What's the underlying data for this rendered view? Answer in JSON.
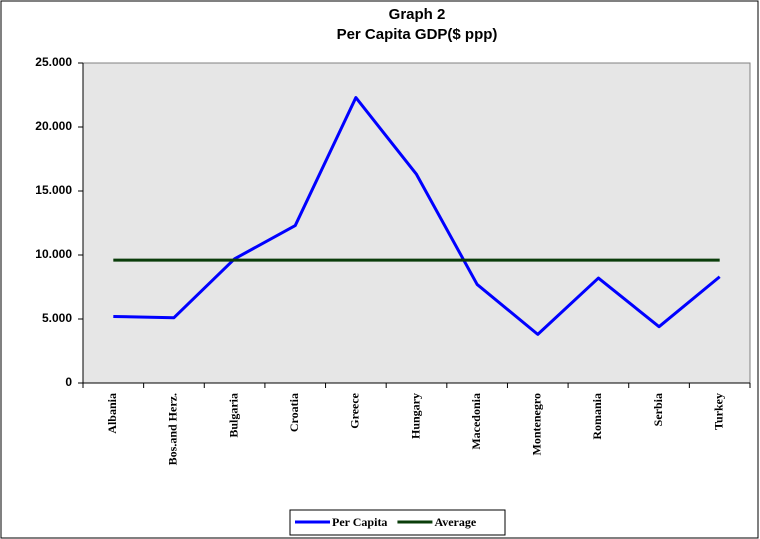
{
  "chart_data": {
    "type": "line",
    "title": "Graph 2",
    "subtitle": "Per Capita GDP($ ppp)",
    "categories": [
      "Albania",
      "Bos.and Herz.",
      "Bulgaria",
      "Croatia",
      "Greece",
      "Hungary",
      "Macedonia",
      "Montenegro",
      "Romania",
      "Serbia",
      "Turkey"
    ],
    "series": [
      {
        "name": "Per Capita",
        "color": "#0000ff",
        "values": [
          5200,
          5100,
          9700,
          12300,
          22300,
          16300,
          7700,
          3800,
          8200,
          4400,
          8300
        ]
      },
      {
        "name": "Average",
        "color": "#0a3d0a",
        "values": [
          9600,
          9600,
          9600,
          9600,
          9600,
          9600,
          9600,
          9600,
          9600,
          9600,
          9600
        ]
      }
    ],
    "ylim": [
      0,
      25000
    ],
    "yticks": [
      0,
      {
        "value": 5000,
        "label": "5.000"
      },
      {
        "value": 10000,
        "label": "10.000"
      },
      {
        "value": 15000,
        "label": "15.000"
      },
      {
        "value": 20000,
        "label": "20.000"
      },
      {
        "value": 25000,
        "label": "25.000"
      }
    ],
    "legend": "bottom"
  }
}
